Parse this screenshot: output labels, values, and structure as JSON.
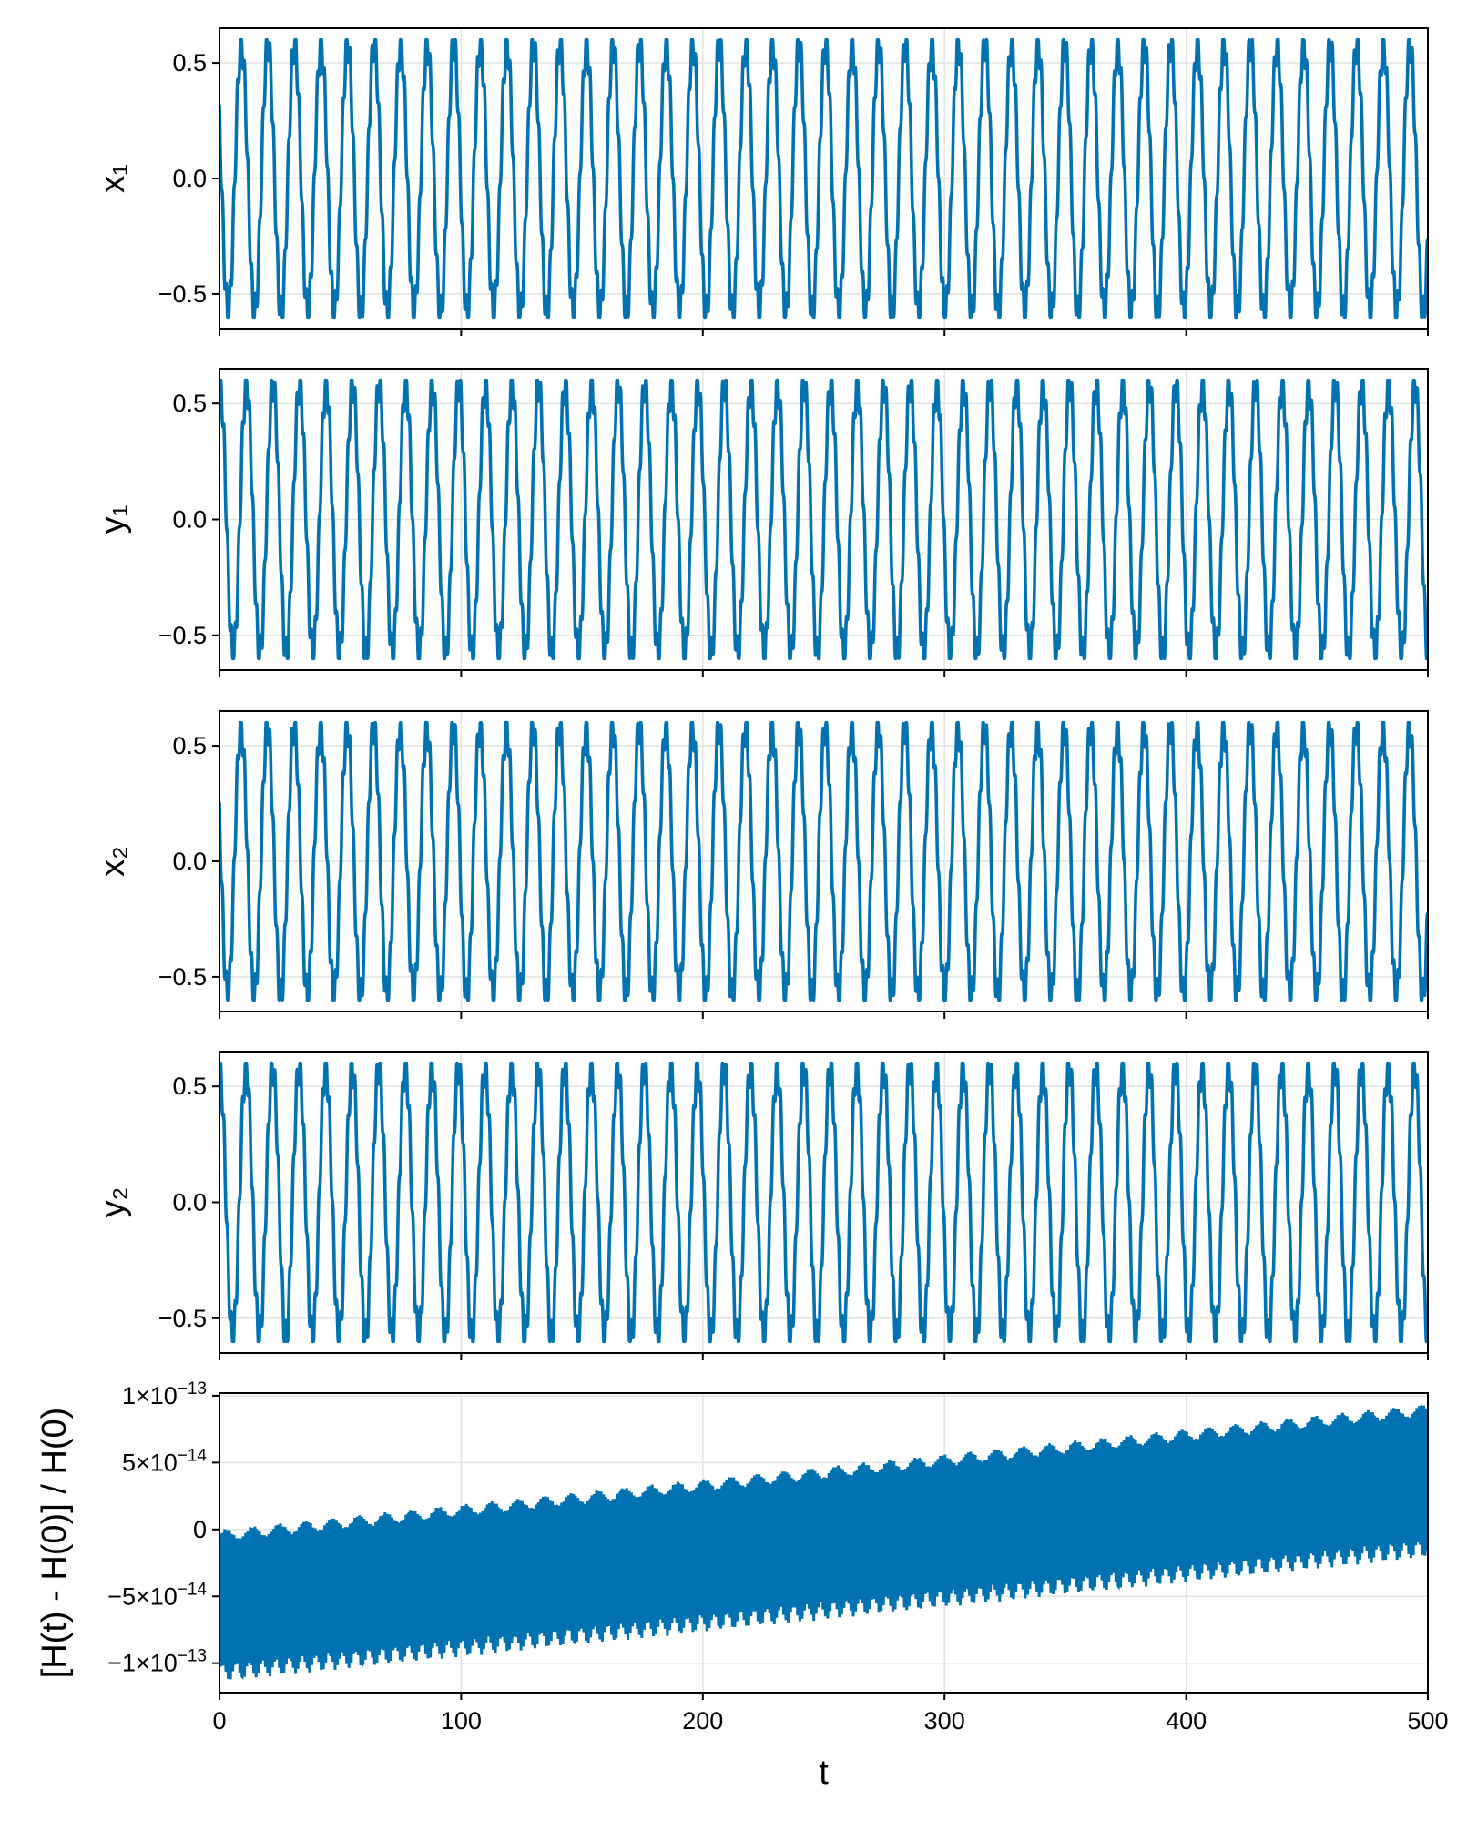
{
  "colors": {
    "series": "#0072b2",
    "grid": "#e3e3e3",
    "frame": "#000000"
  },
  "chart_data": [
    {
      "type": "line",
      "ylabel": "x₁",
      "xlim": [
        0,
        500
      ],
      "ylim": [
        -0.65,
        0.65
      ],
      "yticks": [
        -0.5,
        0.0,
        0.5
      ],
      "ytick_labels": [
        "−0.5",
        "0.0",
        "0.5"
      ],
      "xticks": [
        0,
        100,
        200,
        300,
        400,
        500
      ],
      "series": [
        {
          "cycles": 45.5,
          "amplitude": 0.58,
          "phase": 1.1,
          "ripple": 0.07
        }
      ],
      "grid": true
    },
    {
      "type": "line",
      "ylabel": "y₁",
      "xlim": [
        0,
        500
      ],
      "ylim": [
        -0.65,
        0.65
      ],
      "yticks": [
        -0.5,
        0.0,
        0.5
      ],
      "ytick_labels": [
        "−0.5",
        "0.0",
        "0.5"
      ],
      "xticks": [
        0,
        100,
        200,
        300,
        400,
        500
      ],
      "series": [
        {
          "cycles": 45.5,
          "amplitude": 0.58,
          "phase": -0.1,
          "ripple": 0.07
        }
      ],
      "grid": true
    },
    {
      "type": "line",
      "ylabel": "x₂",
      "xlim": [
        0,
        500
      ],
      "ylim": [
        -0.65,
        0.65
      ],
      "yticks": [
        -0.5,
        0.0,
        0.5
      ],
      "ytick_labels": [
        "−0.5",
        "0.0",
        "0.5"
      ],
      "xticks": [
        0,
        100,
        200,
        300,
        400,
        500
      ],
      "series": [
        {
          "cycles": 45.5,
          "amplitude": 0.58,
          "phase": 1.2,
          "ripple": 0.07
        }
      ],
      "grid": true
    },
    {
      "type": "line",
      "ylabel": "y₂",
      "xlim": [
        0,
        500
      ],
      "ylim": [
        -0.65,
        0.65
      ],
      "yticks": [
        -0.5,
        0.0,
        0.5
      ],
      "ytick_labels": [
        "−0.5",
        "0.0",
        "0.5"
      ],
      "xticks": [
        0,
        100,
        200,
        300,
        400,
        500
      ],
      "series": [
        {
          "cycles": 45.5,
          "amplitude": 0.58,
          "phase": 0.0,
          "ripple": 0.07
        }
      ],
      "grid": true
    },
    {
      "type": "area",
      "ylabel": "[H(t) - H(0)] / H(0)",
      "xlabel": "t",
      "xlim": [
        0,
        500
      ],
      "ylim": [
        -1.22e-13,
        1.02e-13
      ],
      "yticks": [
        -1e-13,
        -5e-14,
        0,
        5e-14,
        1e-13
      ],
      "ytick_labels": [
        {
          "base": "−1×10",
          "exp": "−13"
        },
        {
          "base": "−5×10",
          "exp": "−14"
        },
        {
          "base": "0",
          "exp": ""
        },
        {
          "base": "5×10",
          "exp": "−14"
        },
        {
          "base": "1×10",
          "exp": "−13"
        }
      ],
      "xticks": [
        0,
        100,
        200,
        300,
        400,
        500
      ],
      "xtick_labels": [
        "0",
        "100",
        "200",
        "300",
        "400",
        "500"
      ],
      "band": {
        "upper_start": -4e-15,
        "upper_end": 9e-14,
        "lower_start": -1.08e-13,
        "lower_end": -1.5e-14
      },
      "grid": true
    }
  ]
}
